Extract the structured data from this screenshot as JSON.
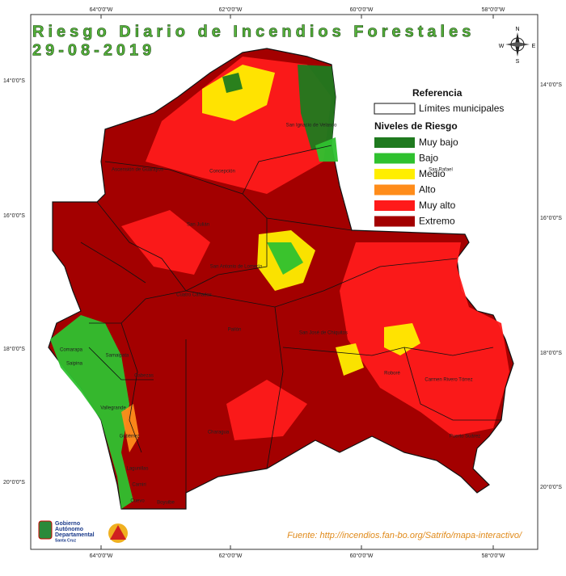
{
  "header": {
    "title": "Riesgo Diario de Incendios Forestales",
    "date": "29-08-2019"
  },
  "graticule": {
    "top": [
      "64°0'0\"W",
      "62°0'0\"W",
      "60°0'0\"W",
      "58°0'0\"W"
    ],
    "bottom": [
      "64°0'0\"W",
      "62°0'0\"W",
      "60°0'0\"W",
      "58°0'0\"W"
    ],
    "left": [
      "14°0'0\"S",
      "16°0'0\"S",
      "18°0'0\"S",
      "20°0'0\"S"
    ],
    "right": [
      "14°0'0\"S",
      "16°0'0\"S",
      "18°0'0\"S",
      "20°0'0\"S"
    ]
  },
  "compass": [
    "N",
    "S",
    "E",
    "W"
  ],
  "legend": {
    "title": "Referencia",
    "boundary_label": "Límites municipales",
    "levels_title": "Niveles de Riesgo",
    "levels": [
      {
        "label": "Muy bajo",
        "color": "#1f7a1f"
      },
      {
        "label": "Bajo",
        "color": "#2fc12f"
      },
      {
        "label": "Medio",
        "color": "#ffee00"
      },
      {
        "label": "Alto",
        "color": "#ff8c1a"
      },
      {
        "label": "Muy alto",
        "color": "#ff1a1a"
      },
      {
        "label": "Extremo",
        "color": "#a30000"
      }
    ]
  },
  "municipalities": [
    "San Ignacio de Velasco",
    "Concepción",
    "Ascensión de Guarayos",
    "San Julián",
    "San Antonio de Lomerío",
    "Cuatro Cañadas",
    "Pailón",
    "San José de Chiquitos",
    "Roboré",
    "Carmen Rivero Tórrez",
    "Puerto Suárez",
    "San Rafael",
    "Charagua",
    "Cabezas",
    "Gutiérrez",
    "Lagunillas",
    "Camiri",
    "Cuevo",
    "Boyuibe",
    "Vallegrande",
    "Samaipata",
    "Comarapa",
    "Saipina"
  ],
  "logo": [
    "Gobierno",
    "Autónomo",
    "Departamental",
    "Santa Cruz"
  ],
  "source": "Fuente: http://incendios.fan-bo.org/Satrifo/mapa-interactivo/"
}
